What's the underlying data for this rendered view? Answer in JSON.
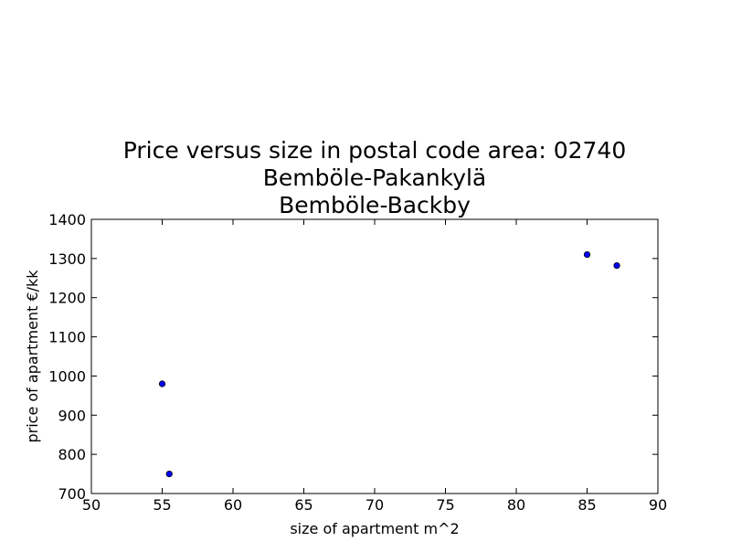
{
  "chart_data": {
    "type": "scatter",
    "title_lines": [
      "Price versus size in postal code area: 02740",
      "Bemböle-Pakankylä",
      "Bemböle-Backby"
    ],
    "xlabel": "size of apartment m^2",
    "ylabel": "price of apartment €/kk",
    "xlim": [
      50,
      90
    ],
    "ylim": [
      700,
      1400
    ],
    "xticks": [
      50,
      55,
      60,
      65,
      70,
      75,
      80,
      85,
      90
    ],
    "yticks": [
      700,
      800,
      900,
      1000,
      1100,
      1200,
      1300,
      1400
    ],
    "grid": false,
    "marker_color": "#0000ff",
    "points": [
      {
        "x": 55.0,
        "y": 980
      },
      {
        "x": 55.5,
        "y": 750
      },
      {
        "x": 85.0,
        "y": 1310
      },
      {
        "x": 87.1,
        "y": 1282
      }
    ]
  }
}
